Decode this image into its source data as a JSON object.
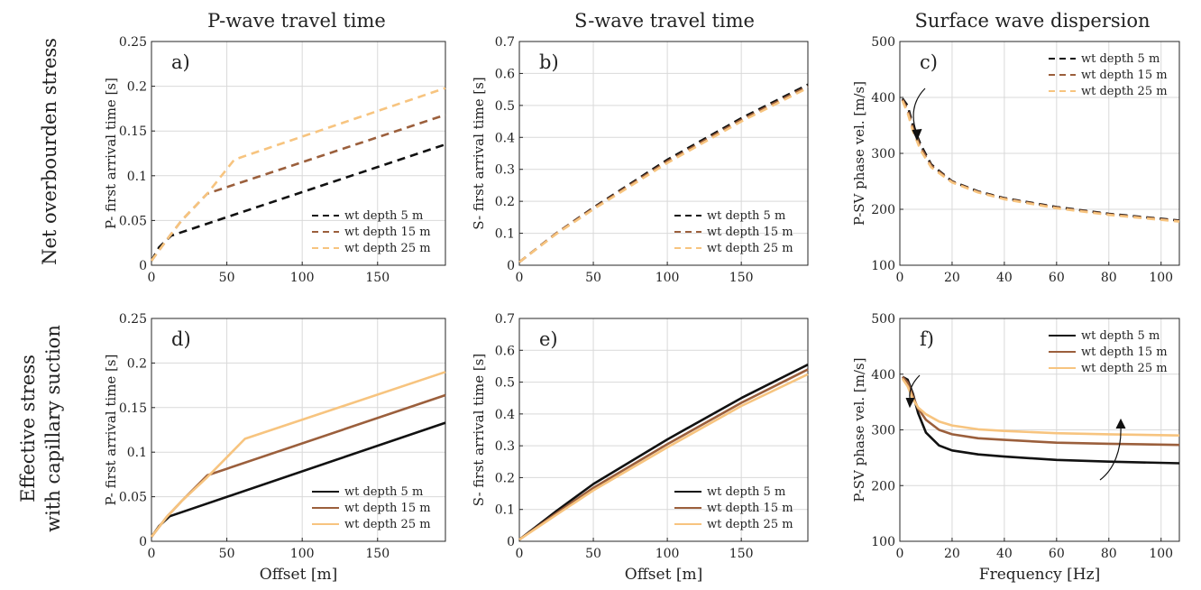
{
  "figure": {
    "col_titles": [
      "P-wave travel time",
      "S-wave travel time",
      "Surface wave dispersion"
    ],
    "row_labels": [
      [
        "Net overbourden stress"
      ],
      [
        "Effective stress",
        "with capillary suction"
      ]
    ]
  },
  "colors": {
    "wt5": "#111111",
    "wt15": "#9b5f3c",
    "wt25": "#f7c47f"
  },
  "chart_data": [
    {
      "id": "a",
      "panel_label": "a)",
      "type": "line",
      "line_style": "dashed",
      "xlabel": "",
      "ylabel": "P- first arrival time [s]",
      "xlim": [
        0,
        195
      ],
      "ylim": [
        0,
        0.25
      ],
      "xticks": [
        0,
        50,
        100,
        150
      ],
      "yticks": [
        0,
        0.05,
        0.1,
        0.15,
        0.2,
        0.25
      ],
      "ytick_labels": [
        "0",
        "0.05",
        "0.1",
        "0.15",
        "0.2",
        "0.25"
      ],
      "legend": "bottom-right",
      "series": [
        {
          "name": "wt depth 5 m",
          "color": "#111111",
          "x": [
            0,
            5,
            13,
            195
          ],
          "y": [
            0.005,
            0.02,
            0.033,
            0.135
          ]
        },
        {
          "name": "wt depth 15 m",
          "color": "#9b5f3c",
          "x": [
            0,
            10,
            20,
            37,
            195
          ],
          "y": [
            0.005,
            0.028,
            0.05,
            0.08,
            0.168
          ]
        },
        {
          "name": "wt depth 25 m",
          "color": "#f7c47f",
          "x": [
            0,
            10,
            20,
            37,
            55,
            195
          ],
          "y": [
            0.005,
            0.028,
            0.05,
            0.08,
            0.118,
            0.198
          ]
        }
      ]
    },
    {
      "id": "b",
      "panel_label": "b)",
      "type": "line",
      "line_style": "dashed",
      "xlabel": "",
      "ylabel": "S- first arrival time [s]",
      "xlim": [
        0,
        195
      ],
      "ylim": [
        0,
        0.7
      ],
      "xticks": [
        0,
        50,
        100,
        150
      ],
      "yticks": [
        0,
        0.1,
        0.2,
        0.3,
        0.4,
        0.5,
        0.6,
        0.7
      ],
      "ytick_labels": [
        "0",
        "0.1",
        "0.2",
        "0.3",
        "0.4",
        "0.5",
        "0.6",
        "0.7"
      ],
      "legend": "bottom-right",
      "series": [
        {
          "name": "wt depth 5 m",
          "color": "#111111",
          "x": [
            0,
            25,
            50,
            100,
            150,
            195
          ],
          "y": [
            0.01,
            0.1,
            0.18,
            0.33,
            0.46,
            0.565
          ]
        },
        {
          "name": "wt depth 15 m",
          "color": "#9b5f3c",
          "x": [
            0,
            25,
            50,
            100,
            150,
            195
          ],
          "y": [
            0.01,
            0.1,
            0.178,
            0.325,
            0.455,
            0.56
          ]
        },
        {
          "name": "wt depth 25 m",
          "color": "#f7c47f",
          "x": [
            0,
            25,
            50,
            100,
            150,
            195
          ],
          "y": [
            0.01,
            0.098,
            0.175,
            0.32,
            0.45,
            0.555
          ]
        }
      ]
    },
    {
      "id": "c",
      "panel_label": "c)",
      "type": "line",
      "line_style": "dashed",
      "xlabel": "",
      "ylabel": "P-SV phase vel. [m/s]",
      "xlim": [
        0,
        107
      ],
      "ylim": [
        100,
        500
      ],
      "xticks": [
        0,
        20,
        40,
        60,
        80,
        100
      ],
      "yticks": [
        100,
        200,
        300,
        400,
        500
      ],
      "ytick_labels": [
        "100",
        "200",
        "300",
        "400",
        "500"
      ],
      "legend": "top-right",
      "series": [
        {
          "name": "wt depth 5 m",
          "color": "#111111",
          "x": [
            1,
            3,
            5,
            8,
            12,
            20,
            30,
            40,
            60,
            80,
            107
          ],
          "y": [
            398,
            385,
            350,
            315,
            280,
            250,
            232,
            220,
            204,
            192,
            180
          ]
        },
        {
          "name": "wt depth 15 m",
          "color": "#9b5f3c",
          "x": [
            1,
            3,
            5,
            8,
            12,
            20,
            30,
            40,
            60,
            80,
            107
          ],
          "y": [
            396,
            378,
            345,
            310,
            278,
            249,
            231,
            219,
            203,
            191,
            179
          ]
        },
        {
          "name": "wt depth 25 m",
          "color": "#f7c47f",
          "x": [
            1,
            3,
            5,
            8,
            12,
            20,
            30,
            40,
            60,
            80,
            107
          ],
          "y": [
            394,
            372,
            340,
            305,
            275,
            248,
            230,
            218,
            202,
            190,
            178
          ]
        }
      ]
    },
    {
      "id": "d",
      "panel_label": "d)",
      "type": "line",
      "line_style": "solid",
      "xlabel": "Offset [m]",
      "ylabel": "P- first arrival time [s]",
      "xlim": [
        0,
        195
      ],
      "ylim": [
        0,
        0.25
      ],
      "xticks": [
        0,
        50,
        100,
        150
      ],
      "yticks": [
        0,
        0.05,
        0.1,
        0.15,
        0.2,
        0.25
      ],
      "ytick_labels": [
        "0",
        "0.05",
        "0.1",
        "0.15",
        "0.2",
        "0.25"
      ],
      "legend": "bottom-right",
      "series": [
        {
          "name": "wt depth 5 m",
          "color": "#111111",
          "x": [
            0,
            5,
            12,
            195
          ],
          "y": [
            0.005,
            0.017,
            0.028,
            0.133
          ]
        },
        {
          "name": "wt depth 15 m",
          "color": "#9b5f3c",
          "x": [
            0,
            10,
            20,
            37,
            195
          ],
          "y": [
            0.005,
            0.027,
            0.045,
            0.074,
            0.164
          ]
        },
        {
          "name": "wt depth 25 m",
          "color": "#f7c47f",
          "x": [
            0,
            10,
            20,
            37,
            62,
            195
          ],
          "y": [
            0.005,
            0.027,
            0.045,
            0.072,
            0.115,
            0.19
          ]
        }
      ]
    },
    {
      "id": "e",
      "panel_label": "e)",
      "type": "line",
      "line_style": "solid",
      "xlabel": "Offset [m]",
      "ylabel": "S- first arrival time [s]",
      "xlim": [
        0,
        195
      ],
      "ylim": [
        0,
        0.7
      ],
      "xticks": [
        0,
        50,
        100,
        150
      ],
      "yticks": [
        0,
        0.1,
        0.2,
        0.3,
        0.4,
        0.5,
        0.6,
        0.7
      ],
      "ytick_labels": [
        "0",
        "0.1",
        "0.2",
        "0.3",
        "0.4",
        "0.5",
        "0.6",
        "0.7"
      ],
      "legend": "bottom-right",
      "series": [
        {
          "name": "wt depth 5 m",
          "color": "#111111",
          "x": [
            0,
            25,
            50,
            100,
            150,
            195
          ],
          "y": [
            0.005,
            0.095,
            0.18,
            0.32,
            0.45,
            0.555
          ]
        },
        {
          "name": "wt depth 15 m",
          "color": "#9b5f3c",
          "x": [
            0,
            25,
            50,
            100,
            150,
            195
          ],
          "y": [
            0.005,
            0.088,
            0.168,
            0.305,
            0.435,
            0.54
          ]
        },
        {
          "name": "wt depth 25 m",
          "color": "#f7c47f",
          "x": [
            0,
            25,
            50,
            100,
            150,
            195
          ],
          "y": [
            0.005,
            0.083,
            0.16,
            0.295,
            0.425,
            0.525
          ]
        }
      ]
    },
    {
      "id": "f",
      "panel_label": "f)",
      "type": "line",
      "line_style": "solid",
      "xlabel": "Frequency [Hz]",
      "ylabel": "P-SV phase vel. [m/s]",
      "xlim": [
        0,
        107
      ],
      "ylim": [
        100,
        500
      ],
      "xticks": [
        0,
        20,
        40,
        60,
        80,
        100
      ],
      "yticks": [
        100,
        200,
        300,
        400,
        500
      ],
      "ytick_labels": [
        "100",
        "200",
        "300",
        "400",
        "500"
      ],
      "legend": "top-right",
      "series": [
        {
          "name": "wt depth 5 m",
          "color": "#111111",
          "x": [
            1,
            3,
            5,
            7,
            10,
            15,
            20,
            30,
            40,
            60,
            80,
            107
          ],
          "y": [
            395,
            390,
            365,
            330,
            295,
            272,
            263,
            256,
            252,
            246,
            243,
            240
          ]
        },
        {
          "name": "wt depth 15 m",
          "color": "#9b5f3c",
          "x": [
            1,
            3,
            5,
            7,
            10,
            15,
            20,
            30,
            40,
            60,
            80,
            107
          ],
          "y": [
            395,
            385,
            360,
            338,
            318,
            300,
            292,
            285,
            282,
            277,
            275,
            273
          ]
        },
        {
          "name": "wt depth 25 m",
          "color": "#f7c47f",
          "x": [
            1,
            3,
            5,
            7,
            10,
            15,
            20,
            30,
            40,
            60,
            80,
            107
          ],
          "y": [
            392,
            378,
            355,
            340,
            328,
            315,
            308,
            301,
            298,
            294,
            292,
            290
          ]
        }
      ]
    }
  ]
}
